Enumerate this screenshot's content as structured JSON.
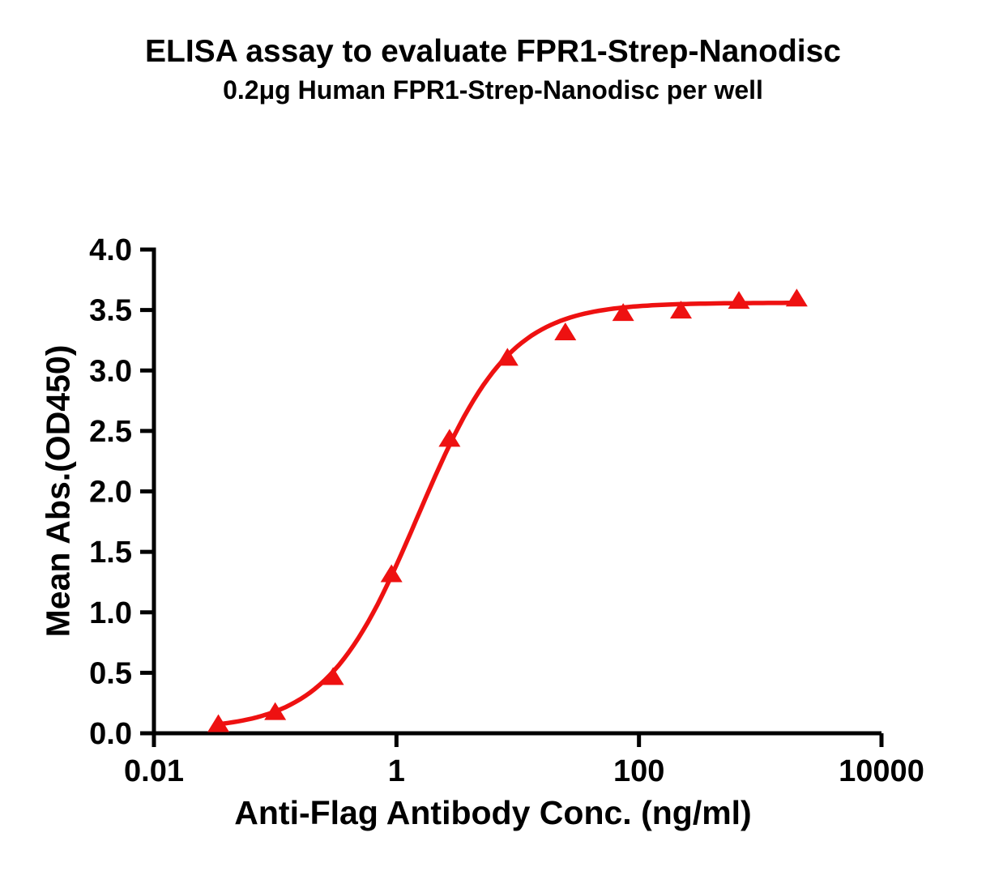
{
  "title": "ELISA assay to evaluate FPR1-Strep-Nanodisc",
  "subtitle": "0.2μg Human FPR1-Strep-Nanodisc per well",
  "chart_data": {
    "type": "scatter",
    "title": "ELISA assay to evaluate FPR1-Strep-Nanodisc",
    "subtitle": "0.2μg Human FPR1-Strep-Nanodisc per well",
    "xlabel": "Anti-Flag Antibody Conc. (ng/ml)",
    "ylabel": "Mean Abs.(OD450)",
    "x_scale": "log10",
    "xlim": [
      0.01,
      10000
    ],
    "ylim": [
      0,
      4
    ],
    "x_ticks": [
      0.01,
      1,
      100,
      10000
    ],
    "x_tick_labels": [
      "0.01",
      "1",
      "100",
      "10000"
    ],
    "y_ticks": [
      0.0,
      0.5,
      1.0,
      1.5,
      2.0,
      2.5,
      3.0,
      3.5,
      4.0
    ],
    "y_tick_labels": [
      "0.0",
      "0.5",
      "1.0",
      "1.5",
      "2.0",
      "2.5",
      "3.0",
      "3.5",
      "4.0"
    ],
    "grid": false,
    "legend": "none",
    "series": [
      {
        "name": "Human FPR1-Strep-Nanodisc",
        "marker": "triangle-up",
        "color": "#EE1111",
        "points": [
          {
            "x": 0.034,
            "y": 0.08
          },
          {
            "x": 0.1,
            "y": 0.18
          },
          {
            "x": 0.3,
            "y": 0.47
          },
          {
            "x": 0.91,
            "y": 1.32
          },
          {
            "x": 2.74,
            "y": 2.44
          },
          {
            "x": 8.23,
            "y": 3.11
          },
          {
            "x": 24.7,
            "y": 3.32
          },
          {
            "x": 74.1,
            "y": 3.48
          },
          {
            "x": 222,
            "y": 3.5
          },
          {
            "x": 667,
            "y": 3.58
          },
          {
            "x": 2000,
            "y": 3.6
          }
        ]
      }
    ],
    "fit": {
      "type": "4PL-sigmoid",
      "bottom": 0.03,
      "top": 3.56,
      "ec50": 1.5,
      "hill": 1.15
    },
    "colors": {
      "curve": "#EE1111",
      "axis": "#000000",
      "text": "#000000",
      "background": "#FFFFFF"
    }
  }
}
